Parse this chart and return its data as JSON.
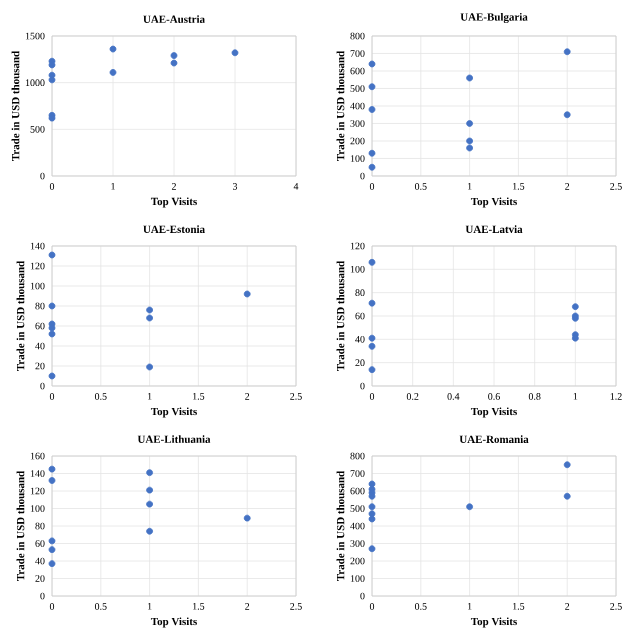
{
  "chart_data": [
    {
      "type": "scatter",
      "title": "UAE-Austria",
      "xlabel": "Top Visits",
      "ylabel": "Trade in USD thousand",
      "grid": true,
      "xlim": [
        0,
        4
      ],
      "xticks": [
        0,
        1,
        2,
        3,
        4
      ],
      "ylim": [
        0,
        1500
      ],
      "yticks": [
        0,
        500,
        1000,
        1500
      ],
      "series": [
        {
          "color": "#4472c4",
          "x": [
            0,
            0,
            0,
            0,
            0,
            0,
            1,
            1,
            2,
            2,
            3
          ],
          "values": [
            1230,
            1190,
            1080,
            1030,
            650,
            620,
            1360,
            1110,
            1290,
            1210,
            1320
          ]
        }
      ]
    },
    {
      "type": "scatter",
      "title": "UAE-Bulgaria",
      "xlabel": "Top Visits",
      "ylabel": "Trade in USD thousand",
      "grid": true,
      "xlim": [
        0,
        2.5
      ],
      "xticks": [
        0,
        0.5,
        1,
        1.5,
        2,
        2.5
      ],
      "ylim": [
        0,
        800
      ],
      "yticks": [
        0,
        100,
        200,
        300,
        400,
        500,
        600,
        700,
        800
      ],
      "series": [
        {
          "color": "#4472c4",
          "x": [
            0,
            0,
            0,
            0,
            0,
            1,
            1,
            1,
            1,
            2,
            2
          ],
          "values": [
            640,
            510,
            380,
            130,
            50,
            560,
            300,
            200,
            160,
            710,
            350
          ]
        }
      ]
    },
    {
      "type": "scatter",
      "title": "UAE-Estonia",
      "xlabel": "Top Visits",
      "ylabel": "Trade in USD thousand",
      "grid": true,
      "xlim": [
        0,
        2.5
      ],
      "xticks": [
        0,
        0.5,
        1,
        1.5,
        2,
        2.5
      ],
      "ylim": [
        0,
        140
      ],
      "yticks": [
        0,
        20,
        40,
        60,
        80,
        100,
        120,
        140
      ],
      "series": [
        {
          "color": "#4472c4",
          "x": [
            0,
            0,
            0,
            0,
            0,
            0,
            1,
            1,
            1,
            2
          ],
          "values": [
            131,
            80,
            62,
            58,
            52,
            10,
            76,
            68,
            19,
            92
          ]
        }
      ]
    },
    {
      "type": "scatter",
      "title": "UAE-Latvia",
      "xlabel": "Top Visits",
      "ylabel": "Trade in USD thousand",
      "grid": true,
      "xlim": [
        0,
        1.2
      ],
      "xticks": [
        0,
        0.2,
        0.4,
        0.6,
        0.8,
        1,
        1.2
      ],
      "ylim": [
        0,
        120
      ],
      "yticks": [
        0,
        20,
        40,
        60,
        80,
        100,
        120
      ],
      "series": [
        {
          "color": "#4472c4",
          "x": [
            0,
            0,
            0,
            0,
            0,
            1,
            1,
            1,
            1,
            1
          ],
          "values": [
            106,
            71,
            41,
            34,
            14,
            68,
            60,
            58,
            44,
            41
          ]
        }
      ]
    },
    {
      "type": "scatter",
      "title": "UAE-Lithuania",
      "xlabel": "Top Visits",
      "ylabel": "Trade in USD thousand",
      "grid": true,
      "xlim": [
        0,
        2.5
      ],
      "xticks": [
        0,
        0.5,
        1,
        1.5,
        2,
        2.5
      ],
      "ylim": [
        0,
        160
      ],
      "yticks": [
        0,
        20,
        40,
        60,
        80,
        100,
        120,
        140,
        160
      ],
      "series": [
        {
          "color": "#4472c4",
          "x": [
            0,
            0,
            0,
            0,
            0,
            1,
            1,
            1,
            1,
            2
          ],
          "values": [
            145,
            132,
            63,
            53,
            37,
            141,
            121,
            105,
            74,
            89
          ]
        }
      ]
    },
    {
      "type": "scatter",
      "title": "UAE-Romania",
      "xlabel": "Top Visits",
      "ylabel": "Trade in USD thousand",
      "grid": true,
      "xlim": [
        0,
        2.5
      ],
      "xticks": [
        0,
        0.5,
        1,
        1.5,
        2,
        2.5
      ],
      "ylim": [
        0,
        800
      ],
      "yticks": [
        0,
        100,
        200,
        300,
        400,
        500,
        600,
        700,
        800
      ],
      "series": [
        {
          "color": "#4472c4",
          "x": [
            0,
            0,
            0,
            0,
            0,
            0,
            0,
            0,
            1,
            2,
            2
          ],
          "values": [
            640,
            610,
            590,
            570,
            510,
            470,
            440,
            270,
            510,
            750,
            570
          ]
        }
      ]
    }
  ]
}
